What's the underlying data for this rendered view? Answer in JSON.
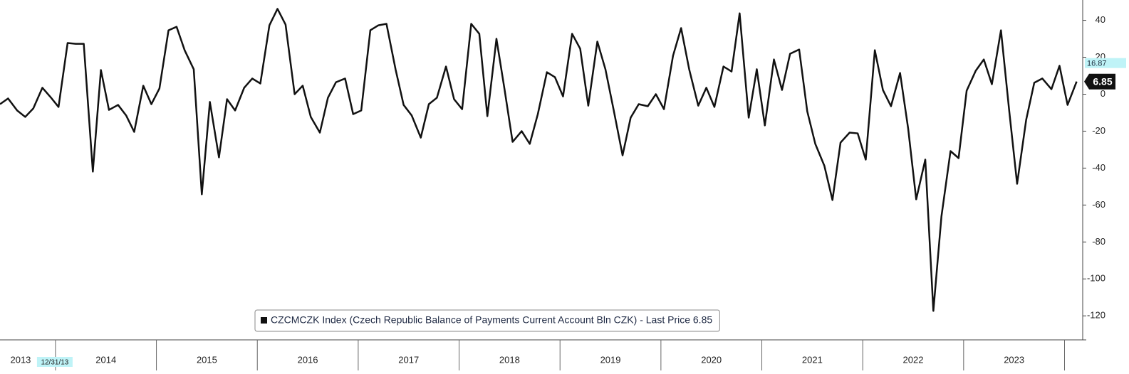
{
  "chart_data": {
    "type": "line",
    "x": [
      2013.45,
      2013.53,
      2013.62,
      2013.7,
      2013.78,
      2013.87,
      2013.95,
      2014.03,
      2014.12,
      2014.2,
      2014.28,
      2014.37,
      2014.45,
      2014.53,
      2014.62,
      2014.7,
      2014.78,
      2014.87,
      2014.95,
      2015.03,
      2015.12,
      2015.2,
      2015.28,
      2015.37,
      2015.45,
      2015.53,
      2015.62,
      2015.7,
      2015.78,
      2015.87,
      2015.95,
      2016.03,
      2016.12,
      2016.2,
      2016.28,
      2016.37,
      2016.45,
      2016.53,
      2016.62,
      2016.7,
      2016.78,
      2016.87,
      2016.95,
      2017.03,
      2017.12,
      2017.2,
      2017.28,
      2017.37,
      2017.45,
      2017.53,
      2017.62,
      2017.7,
      2017.78,
      2017.87,
      2017.95,
      2018.03,
      2018.12,
      2018.2,
      2018.28,
      2018.37,
      2018.45,
      2018.53,
      2018.62,
      2018.7,
      2018.78,
      2018.87,
      2018.95,
      2019.03,
      2019.12,
      2019.2,
      2019.28,
      2019.37,
      2019.45,
      2019.53,
      2019.62,
      2019.7,
      2019.78,
      2019.87,
      2019.95,
      2020.03,
      2020.12,
      2020.2,
      2020.28,
      2020.37,
      2020.45,
      2020.53,
      2020.62,
      2020.7,
      2020.78,
      2020.87,
      2020.95,
      2021.03,
      2021.12,
      2021.2,
      2021.28,
      2021.37,
      2021.45,
      2021.53,
      2021.62,
      2021.7,
      2021.78,
      2021.87,
      2021.95,
      2022.03,
      2022.12,
      2022.2,
      2022.28,
      2022.37,
      2022.45,
      2022.53,
      2022.62,
      2022.7,
      2022.78,
      2022.87,
      2022.95,
      2023.03,
      2023.12,
      2023.2,
      2023.28,
      2023.37,
      2023.45,
      2023.53,
      2023.62,
      2023.7,
      2023.78,
      2023.87,
      2023.95,
      2024.03,
      2024.12
    ],
    "series": [
      {
        "name": "CZCMCZK Index (Czech Republic Balance of Payments Current Account Bln CZK) - Last Price 6.85",
        "color": "#111111",
        "values": [
          -5.4,
          -2.3,
          -8.8,
          -12.3,
          -7.7,
          3.5,
          -1.5,
          -6.9,
          27.7,
          27.3,
          27.3,
          -41.9,
          13.1,
          -8.5,
          -5.8,
          -11.5,
          -20.4,
          4.6,
          -5.4,
          3.1,
          34.6,
          36.5,
          23.8,
          13.5,
          -54.2,
          -4.2,
          -34.2,
          -2.7,
          -8.8,
          3.5,
          8.5,
          5.8,
          37.3,
          46.2,
          37.7,
          0,
          4.6,
          -12.3,
          -20.8,
          -1.9,
          6.5,
          8.5,
          -10.8,
          -8.8,
          34.6,
          37.3,
          38.1,
          13.5,
          -5.8,
          -11.5,
          -23.5,
          -5.4,
          -1.9,
          15,
          -2.7,
          -8.1,
          38.1,
          32.7,
          -11.9,
          30,
          2.7,
          -25.8,
          -20,
          -26.9,
          -10.8,
          11.9,
          9.2,
          -1.2,
          32.7,
          24.6,
          -6.2,
          28.5,
          13.5,
          -8.1,
          -33.1,
          -12.7,
          -5.4,
          -6.5,
          0,
          -8.1,
          20.8,
          35.8,
          13.5,
          -6.2,
          3.5,
          -6.9,
          15,
          12.3,
          43.8,
          -12.7,
          13.5,
          -16.9,
          18.8,
          2.3,
          21.9,
          24.2,
          -9.2,
          -26.9,
          -38.8,
          -57.3,
          -26.2,
          -20.8,
          -21.2,
          -35.4,
          23.8,
          2.3,
          -6.5,
          11.5,
          -18.5,
          -56.9,
          -35.4,
          -117.3,
          -66.2,
          -30.8,
          -34.6,
          1.9,
          12.7,
          18.8,
          5.4,
          34.6,
          -8.1,
          -48.5,
          -13.8,
          6.2,
          8.5,
          2.7,
          15.4,
          -5.8,
          6.85
        ]
      }
    ],
    "xlim": [
      2013.45,
      2024.18
    ],
    "xticks": [
      2014,
      2015,
      2016,
      2017,
      2018,
      2019,
      2020,
      2021,
      2022,
      2023,
      2024
    ],
    "year_labels": [
      2013,
      2014,
      2015,
      2016,
      2017,
      2018,
      2019,
      2020,
      2021,
      2022,
      2023
    ],
    "date_marker": {
      "value": 2014.0,
      "label": "12/31/13"
    },
    "ylim": [
      -133,
      51
    ],
    "yticks": [
      40,
      20,
      0,
      -20,
      -40,
      -60,
      -80,
      -100,
      -120
    ],
    "reference_tag": 16.87,
    "last_tag": 6.85,
    "grid": false
  }
}
